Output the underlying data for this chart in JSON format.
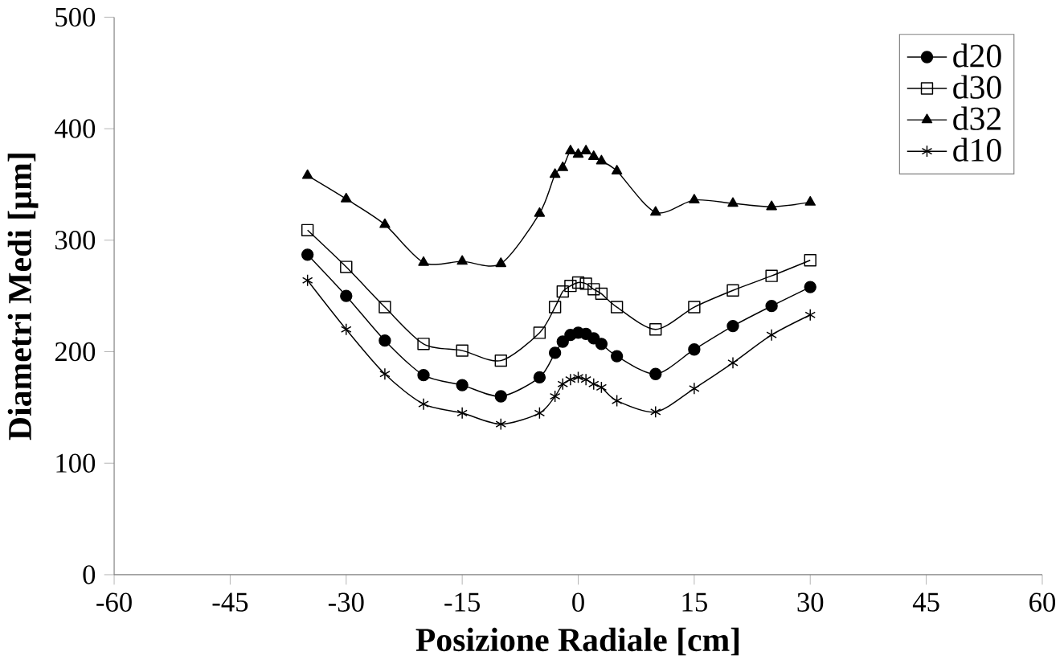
{
  "chart_data": {
    "type": "line",
    "xlabel": "Posizione Radiale [cm]",
    "ylabel": "Diametri Medi [µm]",
    "xlim": [
      -60,
      60
    ],
    "xticks": [
      -60,
      -45,
      -30,
      -15,
      0,
      15,
      30,
      45,
      60
    ],
    "ylim": [
      0,
      500
    ],
    "yticks": [
      0,
      100,
      200,
      300,
      400,
      500
    ],
    "x": [
      -35,
      -30,
      -25,
      -20,
      -15,
      -10,
      -5,
      -3,
      -2,
      -1,
      0,
      1,
      2,
      3,
      5,
      10,
      15,
      20,
      25,
      30
    ],
    "legend": "top right",
    "grid": false,
    "line_style": "solid",
    "series": [
      {
        "name": "d20",
        "color": "#000000",
        "marker": "circle",
        "values": [
          287,
          250,
          210,
          179,
          170,
          160,
          177,
          199,
          209,
          215,
          217,
          216,
          212,
          207,
          196,
          180,
          202,
          223,
          241,
          258
        ]
      },
      {
        "name": "d30",
        "color": "#000000",
        "marker": "square",
        "values": [
          309,
          276,
          240,
          207,
          201,
          192,
          217,
          240,
          254,
          259,
          262,
          261,
          256,
          252,
          240,
          220,
          240,
          255,
          268,
          282
        ]
      },
      {
        "name": "d32",
        "color": "#000000",
        "marker": "triangle",
        "values": [
          358,
          337,
          314,
          280,
          281,
          279,
          324,
          359,
          365,
          380,
          377,
          380,
          375,
          371,
          362,
          325,
          336,
          333,
          330,
          334
        ]
      },
      {
        "name": "d10",
        "color": "#000000",
        "marker": "cross",
        "values": [
          264,
          220,
          180,
          153,
          145,
          135,
          145,
          160,
          171,
          175,
          177,
          175,
          171,
          168,
          156,
          146,
          167,
          190,
          215,
          233
        ]
      }
    ]
  }
}
